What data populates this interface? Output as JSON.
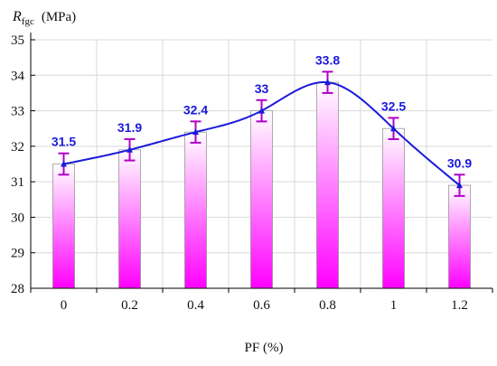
{
  "chart_data": {
    "type": "bar",
    "categories": [
      "0",
      "0.2",
      "0.4",
      "0.6",
      "0.8",
      "1",
      "1.2"
    ],
    "values": [
      31.5,
      31.9,
      32.4,
      33.0,
      33.8,
      32.5,
      30.9
    ],
    "value_labels": [
      "31.5",
      "31.9",
      "32.4",
      "33",
      "33.8",
      "32.5",
      "30.9"
    ],
    "error_bars": {
      "low": [
        31.2,
        31.6,
        32.1,
        32.7,
        33.5,
        32.2,
        30.6
      ],
      "high": [
        31.8,
        32.2,
        32.7,
        33.3,
        34.1,
        32.8,
        31.2
      ]
    },
    "fit_curve": "smooth",
    "ylabel_main": "R",
    "ylabel_sub": "fgc",
    "ylabel_unit": "(MPa)",
    "xlabel": "PF  (%)",
    "ylim": [
      28,
      35
    ],
    "yticks": [
      "28",
      "29",
      "30",
      "31",
      "32",
      "33",
      "34",
      "35"
    ],
    "grid": true,
    "legend": "none",
    "colors": {
      "bar_top": "#ffffff",
      "bar_bottom": "#ff00ff",
      "curve": "#1a1adb",
      "error_bar": "#b000c8",
      "label": "#1a1adb",
      "grid": "#d9d9d9"
    }
  }
}
